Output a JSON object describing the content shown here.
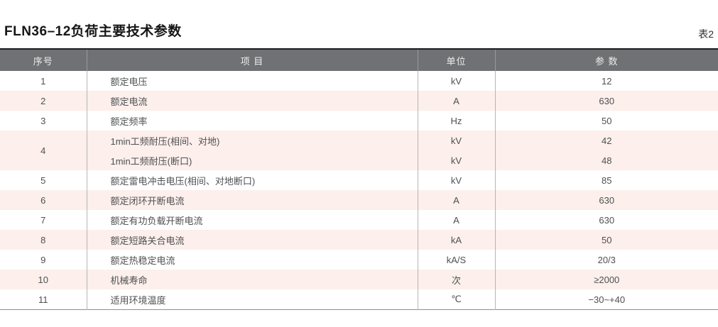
{
  "page": {
    "title": "FLN36–12负荷主要技术参数",
    "table_label": "表2"
  },
  "table": {
    "headers": {
      "no": "序号",
      "item": "项 目",
      "unit": "单位",
      "value": "参 数"
    },
    "rows": [
      {
        "no": "1",
        "item": "额定电压",
        "unit": "kV",
        "value": "12"
      },
      {
        "no": "2",
        "item": "额定电流",
        "unit": "A",
        "value": "630"
      },
      {
        "no": "3",
        "item": "额定频率",
        "unit": "Hz",
        "value": "50"
      },
      {
        "no": "4",
        "item": "1min工频耐压(相间、对地)",
        "unit": "kV",
        "value": "42"
      },
      {
        "no": "4",
        "item": "1min工频耐压(断口)",
        "unit": "kV",
        "value": "48"
      },
      {
        "no": "5",
        "item": "额定雷电冲击电压(相间、对地断口)",
        "unit": "kV",
        "value": "85"
      },
      {
        "no": "6",
        "item": "额定闭环开断电流",
        "unit": "A",
        "value": "630"
      },
      {
        "no": "7",
        "item": "额定有功负载开断电流",
        "unit": "A",
        "value": "630"
      },
      {
        "no": "8",
        "item": "额定短路关合电流",
        "unit": "kA",
        "value": "50"
      },
      {
        "no": "9",
        "item": "额定热稳定电流",
        "unit": "kA/S",
        "value": "20/3"
      },
      {
        "no": "10",
        "item": "机械寿命",
        "unit": "次",
        "value": "≥2000"
      },
      {
        "no": "11",
        "item": "适用环境温度",
        "unit": "℃",
        "value": "−30~+40"
      }
    ]
  },
  "colors": {
    "header_bg": "#6f7174",
    "shaded_row_bg": "#fcefec",
    "header_text": "#ededed",
    "body_text": "#4e5051",
    "top_border": "#1c1c1c"
  }
}
